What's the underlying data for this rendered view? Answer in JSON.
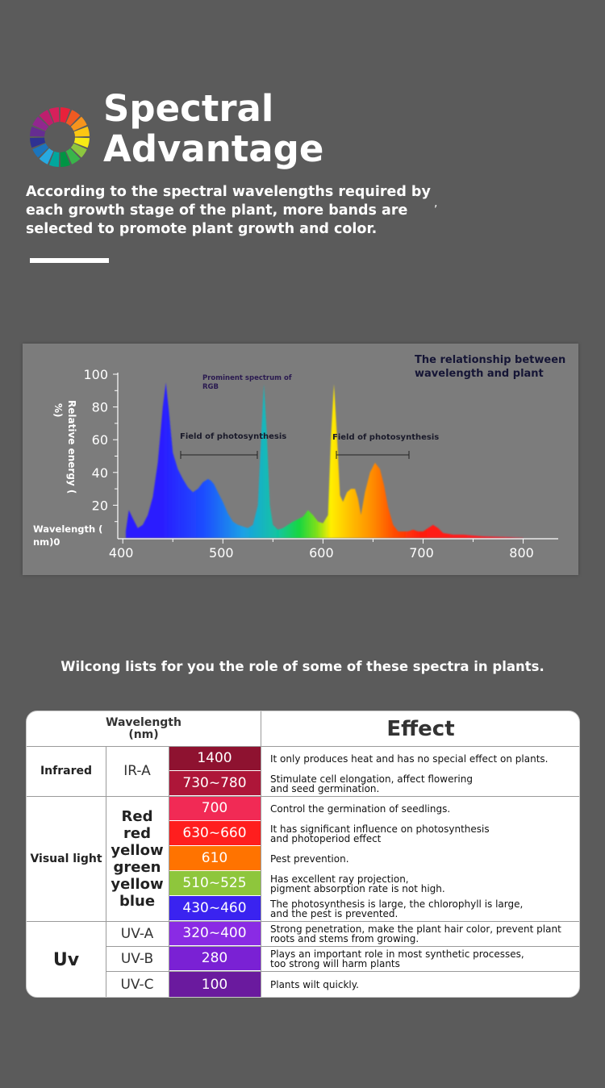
{
  "hero": {
    "title_line1": "Spectral",
    "title_line2": "Advantage",
    "intro": "According to the spectral wavelengths required by each growth stage of the plant, more bands are selected to promote plant growth and color.",
    "intro_mark": ","
  },
  "chart": {
    "corner_title_line1": "The relationship between",
    "corner_title_line2": "wavelength and plant",
    "rgb_note_line1": "Prominent spectrum of",
    "rgb_note_line2": "RGB",
    "field_left": "Field of photosynthesis",
    "field_right": "Field of photosynthesis",
    "ylabel_top": "Relative energy (",
    "ylabel_bottom": "%)",
    "xlabel_line1": "Wavelength (",
    "xlabel_line2": "nm)0"
  },
  "chart_data": {
    "type": "area",
    "ylim": [
      0,
      100
    ],
    "xlim": [
      395,
      835
    ],
    "y_ticks": [
      "100",
      "80",
      "60",
      "40",
      "20"
    ],
    "x_ticks": [
      "400",
      "500",
      "600",
      "700",
      "800"
    ],
    "x": [
      403,
      406,
      410,
      415,
      420,
      425,
      430,
      435,
      440,
      443,
      446,
      450,
      455,
      460,
      465,
      470,
      475,
      480,
      485,
      488,
      491,
      495,
      500,
      505,
      510,
      515,
      520,
      525,
      530,
      535,
      538,
      541,
      544,
      547,
      550,
      555,
      560,
      570,
      580,
      585,
      590,
      595,
      600,
      605,
      608,
      611,
      614,
      617,
      620,
      624,
      628,
      632,
      635,
      638,
      642,
      647,
      652,
      657,
      661,
      665,
      670,
      675,
      680,
      685,
      690,
      695,
      700,
      705,
      710,
      715,
      720,
      730,
      740,
      750,
      760,
      780,
      800
    ],
    "values": [
      4,
      17,
      12,
      6,
      8,
      14,
      25,
      46,
      80,
      95,
      78,
      52,
      42,
      36,
      31,
      28,
      30,
      34,
      36,
      35,
      33,
      28,
      22,
      15,
      10,
      8,
      7,
      6,
      8,
      20,
      60,
      94,
      62,
      20,
      8,
      5,
      6,
      10,
      13,
      17,
      14,
      10,
      9,
      14,
      62,
      94,
      62,
      26,
      22,
      28,
      30,
      30,
      24,
      14,
      28,
      40,
      46,
      42,
      32,
      19,
      8,
      4,
      4,
      4,
      5,
      4,
      4,
      6,
      8,
      6,
      3,
      2,
      2,
      1.5,
      1,
      0.6,
      0.2
    ]
  },
  "lead": "Wilcong lists for you the role of some of these spectra in plants.",
  "table": {
    "header_wavelength_line1": "Wavelength",
    "header_wavelength_line2": "(nm)",
    "header_effect": "Effect",
    "cat_infrared": "Infrared",
    "cat_visual": "Visual light",
    "cat_uv": "Uv",
    "sub_ir": "IR-A",
    "visual_colors": [
      "Red",
      "red",
      "yellow",
      "green",
      "yellow",
      "blue"
    ],
    "sub_uva": "UV-A",
    "sub_uvb": "UV-B",
    "sub_uvc": "UV-C",
    "rows": [
      {
        "nm": "1400",
        "color": "#8e1230",
        "effect": [
          "It only produces heat and has no special effect on plants."
        ]
      },
      {
        "nm": "730~780",
        "color": "#ae1639",
        "effect": [
          "Stimulate cell elongation, affect flowering",
          "and seed germination."
        ]
      },
      {
        "nm": "700",
        "color": "#f12a55",
        "effect": [
          "Control the germination of seedlings."
        ]
      },
      {
        "nm": "630~660",
        "color": "#ff1e1e",
        "effect": [
          "It has significant influence on photosynthesis",
          "and photoperiod effect"
        ]
      },
      {
        "nm": "610",
        "color": "#ff7300",
        "effect": [
          "Pest prevention."
        ]
      },
      {
        "nm": "510~525",
        "color": "#8ec63c",
        "effect": [
          "Has excellent ray projection,",
          "pigment absorption rate is not high."
        ]
      },
      {
        "nm": "430~460",
        "color": "#3a23f0",
        "effect": [
          "The photosynthesis is large, the chlorophyll is large,",
          "and the pest is prevented."
        ]
      },
      {
        "nm": "320~400",
        "color": "#8a2be4",
        "effect": [
          "Strong penetration, make the plant hair color, prevent plant",
          "roots and stems from growing."
        ]
      },
      {
        "nm": "280",
        "color": "#7a21d4",
        "effect": [
          "Plays an important role in most synthetic processes,",
          "too strong will harm plants"
        ]
      },
      {
        "nm": "100",
        "color": "#6a1a9e",
        "effect": [
          "Plants wilt quickly."
        ]
      }
    ]
  },
  "colors": {
    "background": "#5b5b5b",
    "panel": "#7c7c7c",
    "wheel": [
      "#e8213b",
      "#f05a22",
      "#f7941d",
      "#fcc612",
      "#f6eb14",
      "#8dc63f",
      "#39b54a",
      "#009444",
      "#00a79d",
      "#27aae1",
      "#1c75bc",
      "#2e3192",
      "#662d91",
      "#92278f",
      "#be1e6e",
      "#d7205b"
    ]
  }
}
